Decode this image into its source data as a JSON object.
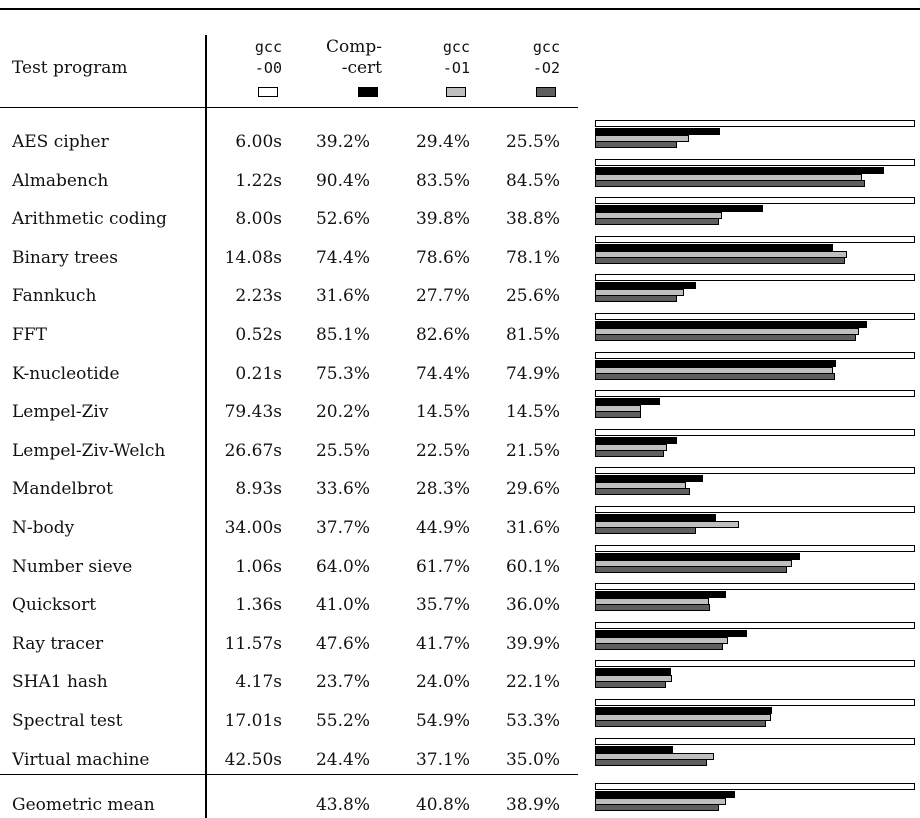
{
  "table": {
    "header": {
      "program": "Test program",
      "cols": [
        {
          "line1": "gcc",
          "line2": "-O0",
          "mono": true,
          "color": "#ffffff"
        },
        {
          "line1": "Comp-",
          "line2": "-cert",
          "mono": false,
          "color": "#000000"
        },
        {
          "line1": "gcc",
          "line2": "-O1",
          "mono": true,
          "color": "#bfbfbf"
        },
        {
          "line1": "gcc",
          "line2": "-O2",
          "mono": true,
          "color": "#5f5f5f"
        }
      ]
    },
    "rows": [
      {
        "name": "AES cipher",
        "base": "6.00s",
        "compcert": "39.2%",
        "o1": "29.4%",
        "o2": "25.5%"
      },
      {
        "name": "Almabench",
        "base": "1.22s",
        "compcert": "90.4%",
        "o1": "83.5%",
        "o2": "84.5%"
      },
      {
        "name": "Arithmetic coding",
        "base": "8.00s",
        "compcert": "52.6%",
        "o1": "39.8%",
        "o2": "38.8%"
      },
      {
        "name": "Binary trees",
        "base": "14.08s",
        "compcert": "74.4%",
        "o1": "78.6%",
        "o2": "78.1%"
      },
      {
        "name": "Fannkuch",
        "base": "2.23s",
        "compcert": "31.6%",
        "o1": "27.7%",
        "o2": "25.6%"
      },
      {
        "name": "FFT",
        "base": "0.52s",
        "compcert": "85.1%",
        "o1": "82.6%",
        "o2": "81.5%"
      },
      {
        "name": "K-nucleotide",
        "base": "0.21s",
        "compcert": "75.3%",
        "o1": "74.4%",
        "o2": "74.9%"
      },
      {
        "name": "Lempel-Ziv",
        "base": "79.43s",
        "compcert": "20.2%",
        "o1": "14.5%",
        "o2": "14.5%"
      },
      {
        "name": "Lempel-Ziv-Welch",
        "base": "26.67s",
        "compcert": "25.5%",
        "o1": "22.5%",
        "o2": "21.5%"
      },
      {
        "name": "Mandelbrot",
        "base": "8.93s",
        "compcert": "33.6%",
        "o1": "28.3%",
        "o2": "29.6%"
      },
      {
        "name": "N-body",
        "base": "34.00s",
        "compcert": "37.7%",
        "o1": "44.9%",
        "o2": "31.6%"
      },
      {
        "name": "Number sieve",
        "base": "1.06s",
        "compcert": "64.0%",
        "o1": "61.7%",
        "o2": "60.1%"
      },
      {
        "name": "Quicksort",
        "base": "1.36s",
        "compcert": "41.0%",
        "o1": "35.7%",
        "o2": "36.0%"
      },
      {
        "name": "Ray tracer",
        "base": "11.57s",
        "compcert": "47.6%",
        "o1": "41.7%",
        "o2": "39.9%"
      },
      {
        "name": "SHA1 hash",
        "base": "4.17s",
        "compcert": "23.7%",
        "o1": "24.0%",
        "o2": "22.1%"
      },
      {
        "name": "Spectral test",
        "base": "17.01s",
        "compcert": "55.2%",
        "o1": "54.9%",
        "o2": "53.3%"
      },
      {
        "name": "Virtual machine",
        "base": "42.50s",
        "compcert": "24.4%",
        "o1": "37.1%",
        "o2": "35.0%"
      }
    ],
    "footer": {
      "name": "Geometric mean",
      "base": "",
      "compcert": "43.8%",
      "o1": "40.8%",
      "o2": "38.9%"
    }
  },
  "chart_data": {
    "type": "bar",
    "orientation": "horizontal",
    "xlim": [
      0,
      100
    ],
    "categories": [
      "AES cipher",
      "Almabench",
      "Arithmetic coding",
      "Binary trees",
      "Fannkuch",
      "FFT",
      "K-nucleotide",
      "Lempel-Ziv",
      "Lempel-Ziv-Welch",
      "Mandelbrot",
      "N-body",
      "Number sieve",
      "Quicksort",
      "Ray tracer",
      "SHA1 hash",
      "Spectral test",
      "Virtual machine",
      "Geometric mean"
    ],
    "series": [
      {
        "name": "gcc -O0",
        "color": "#ffffff",
        "values": [
          100,
          100,
          100,
          100,
          100,
          100,
          100,
          100,
          100,
          100,
          100,
          100,
          100,
          100,
          100,
          100,
          100,
          100
        ]
      },
      {
        "name": "CompCert",
        "color": "#000000",
        "values": [
          39.2,
          90.4,
          52.6,
          74.4,
          31.6,
          85.1,
          75.3,
          20.2,
          25.5,
          33.6,
          37.7,
          64.0,
          41.0,
          47.6,
          23.7,
          55.2,
          24.4,
          43.8
        ]
      },
      {
        "name": "gcc -O1",
        "color": "#bfbfbf",
        "values": [
          29.4,
          83.5,
          39.8,
          78.6,
          27.7,
          82.6,
          74.4,
          14.5,
          22.5,
          28.3,
          44.9,
          61.7,
          35.7,
          41.7,
          24.0,
          54.9,
          37.1,
          40.8
        ]
      },
      {
        "name": "gcc -O2",
        "color": "#5f5f5f",
        "values": [
          25.5,
          84.5,
          38.8,
          78.1,
          25.6,
          81.5,
          74.9,
          14.5,
          21.5,
          29.6,
          31.6,
          60.1,
          36.0,
          39.9,
          22.1,
          53.3,
          35.0,
          38.9
        ]
      }
    ]
  }
}
